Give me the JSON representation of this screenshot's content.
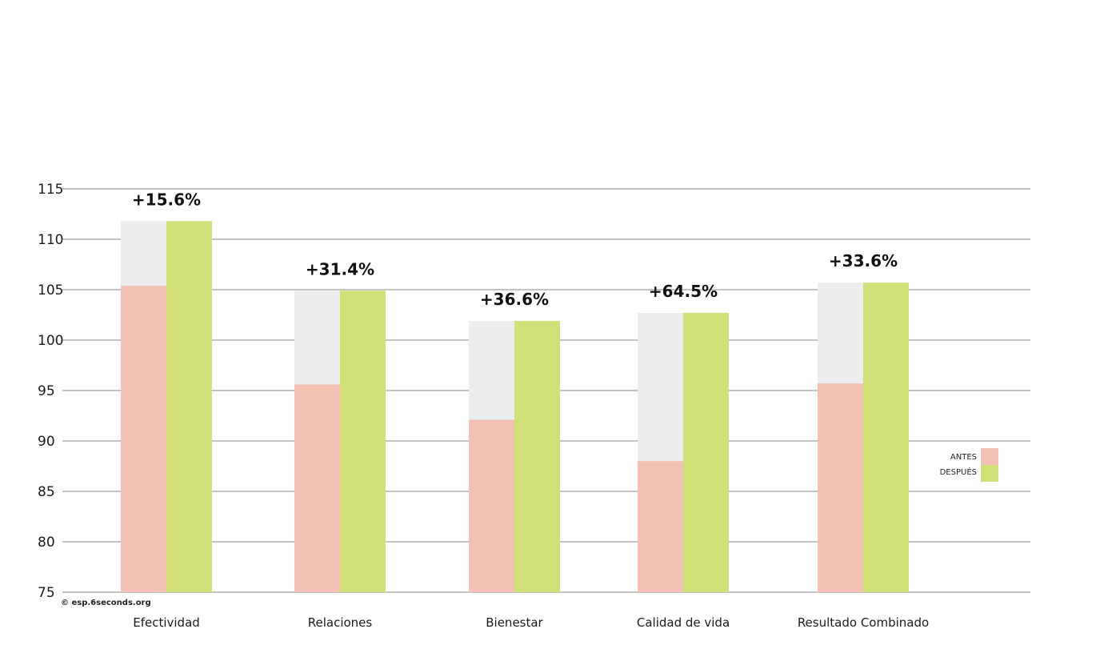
{
  "chart_data": {
    "type": "bar",
    "title": "",
    "xlabel": "",
    "ylabel": "",
    "ylim": [
      75,
      115
    ],
    "yticks": [
      75,
      80,
      85,
      90,
      95,
      100,
      105,
      110,
      115
    ],
    "grid": true,
    "legend_position": "right",
    "categories": [
      "Efectividad",
      "Relaciones",
      "Bienestar",
      "Calidad de vida",
      "Resultado Combinado"
    ],
    "series": [
      {
        "name": "ANTES",
        "color": "#f2c1b4",
        "values": [
          105.4,
          95.6,
          92.1,
          88.0,
          95.7
        ]
      },
      {
        "name": "DESPUÉS",
        "color": "#d1e077",
        "values": [
          111.8,
          104.9,
          101.9,
          102.7,
          105.7
        ]
      }
    ],
    "background_bar_color": "#ecedee",
    "annotations": [
      "+15.6%",
      "+31.4%",
      "+36.6%",
      "+64.5%",
      "+33.6%"
    ],
    "credit": "© esp.6seconds.org"
  }
}
